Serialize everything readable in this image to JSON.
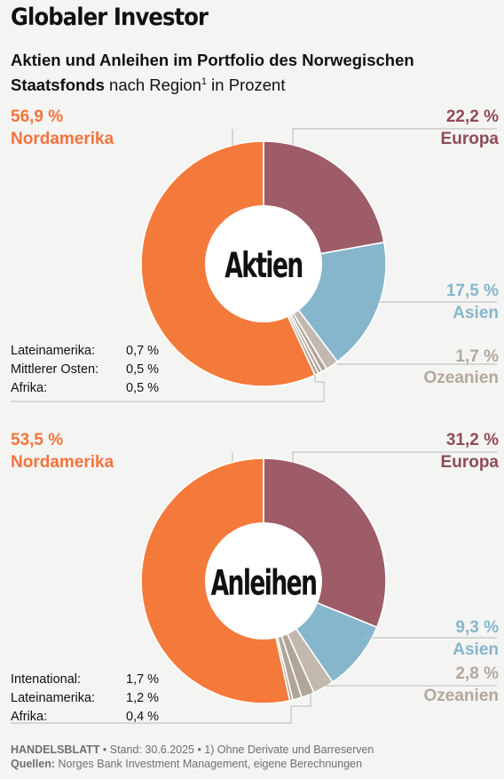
{
  "header": {
    "title": "Globaler Investor",
    "subtitle_bold": "Aktien und Anleihen im Portfolio des Norwegischen Staatsfonds",
    "subtitle_rest": " nach Region",
    "subtitle_sup": "1",
    "subtitle_end": " in Prozent"
  },
  "colors": {
    "nordamerika": "#f47a3c",
    "europa": "#9e5b68",
    "asien": "#86b6cc",
    "ozeanien": "#c3b8ad",
    "small": "#b0a598"
  },
  "chart_data": [
    {
      "type": "pie",
      "title": "Aktien",
      "slices": [
        {
          "name": "Europa",
          "value": 22.2,
          "label": "22,2 %"
        },
        {
          "name": "Asien",
          "value": 17.5,
          "label": "17,5 %"
        },
        {
          "name": "Ozeanien",
          "value": 1.7,
          "label": "1,7 %"
        },
        {
          "name": "Lateinamerika",
          "value": 0.7,
          "label": "0,7 %"
        },
        {
          "name": "Mittlerer Osten",
          "value": 0.5,
          "label": "0,5 %"
        },
        {
          "name": "Afrika",
          "value": 0.5,
          "label": "0,5 %"
        },
        {
          "name": "Nordamerika",
          "value": 56.9,
          "label": "56,9 %"
        }
      ],
      "small_rows": [
        {
          "name": "Lateinamerika:",
          "value": "0,7 %"
        },
        {
          "name": "Mittlerer Osten:",
          "value": "0,5 %"
        },
        {
          "name": "Afrika:",
          "value": "0,5 %"
        }
      ]
    },
    {
      "type": "pie",
      "title": "Anleihen",
      "slices": [
        {
          "name": "Europa",
          "value": 31.2,
          "label": "31,2 %"
        },
        {
          "name": "Asien",
          "value": 9.3,
          "label": "9,3 %"
        },
        {
          "name": "Ozeanien",
          "value": 2.8,
          "label": "2,8 %"
        },
        {
          "name": "Intenational",
          "value": 1.7,
          "label": "1,7 %"
        },
        {
          "name": "Lateinamerika",
          "value": 1.2,
          "label": "1,2 %"
        },
        {
          "name": "Afrika",
          "value": 0.4,
          "label": "0,4 %"
        },
        {
          "name": "Nordamerika",
          "value": 53.5,
          "label": "53,5 %"
        }
      ],
      "small_rows": [
        {
          "name": "Intenational:",
          "value": "1,7 %"
        },
        {
          "name": "Lateinamerika:",
          "value": "1,2 %"
        },
        {
          "name": "Afrika:",
          "value": "0,4 %"
        }
      ]
    }
  ],
  "footer": {
    "source_name": "HANDELSBLATT",
    "line1_rest": " • Stand: 30.6.2025 • 1) Ohne Derivate und Barreserven",
    "quellen_label": "Quellen:",
    "quellen_text": " Norges Bank Investment Management, eigene Berechnungen"
  }
}
